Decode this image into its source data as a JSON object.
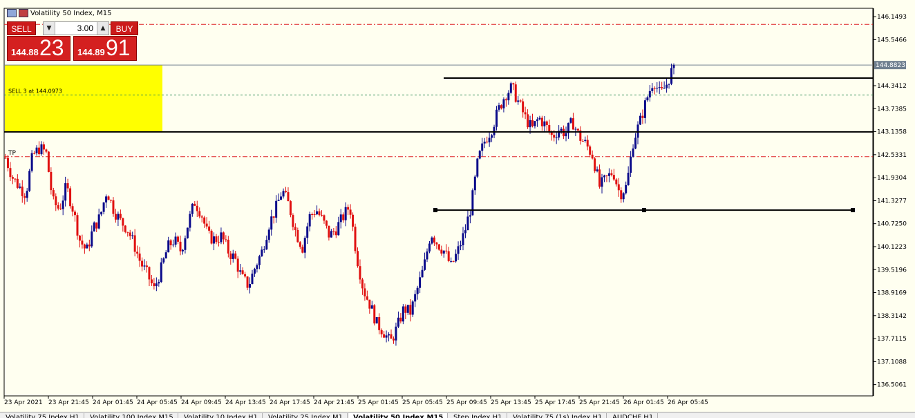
{
  "window": {
    "title": "Volatility 50 Index, M15"
  },
  "trade_panel": {
    "sell_label": "SELL",
    "buy_label": "BUY",
    "lot": "3.00",
    "sell_price_prefix": "144.88",
    "sell_price_big": "23",
    "buy_price_prefix": "144.89",
    "buy_price_big": "91"
  },
  "annotations": {
    "order_label": "SELL 3 at 144.0973",
    "tp_label": "TP",
    "current_price": "144.8823"
  },
  "colors": {
    "background": "#fffff0",
    "bull": "#0a0a8a",
    "bear": "#e01010",
    "zone": "#ffff00",
    "tp_line": "#dd2222",
    "order_line": "#2e8b57",
    "bid_line": "#708090"
  },
  "tabs": [
    {
      "label": "Volatility 75 Index,H1",
      "active": false
    },
    {
      "label": "Volatility 100 Index,M15",
      "active": false
    },
    {
      "label": "Volatility 10 Index,H1",
      "active": false
    },
    {
      "label": "Volatility 25 Index,M1",
      "active": false
    },
    {
      "label": "Volatility 50 Index,M15",
      "active": true
    },
    {
      "label": "Step Index,H1",
      "active": false
    },
    {
      "label": "Volatility 75 (1s) Index,H1",
      "active": false
    },
    {
      "label": "AUDCHF,H1",
      "active": false
    }
  ],
  "chart_data": {
    "type": "candlestick",
    "symbol": "Volatility 50 Index",
    "timeframe": "M15",
    "y_ticks": [
      "146.1493",
      "145.5466",
      "144.3412",
      "143.7385",
      "143.1358",
      "142.5331",
      "141.9304",
      "141.3277",
      "140.7250",
      "140.1223",
      "139.5196",
      "138.9169",
      "138.3142",
      "137.7115",
      "137.1088",
      "136.5061"
    ],
    "x_ticks": [
      "23 Apr 2021",
      "23 Apr 21:45",
      "24 Apr 01:45",
      "24 Apr 05:45",
      "24 Apr 09:45",
      "24 Apr 13:45",
      "24 Apr 17:45",
      "24 Apr 21:45",
      "25 Apr 01:45",
      "25 Apr 05:45",
      "25 Apr 09:45",
      "25 Apr 13:45",
      "25 Apr 17:45",
      "25 Apr 21:45",
      "26 Apr 01:45",
      "26 Apr 05:45"
    ],
    "ylim": [
      136.21,
      146.37
    ],
    "current_price": 144.8823,
    "tp_level": 142.48,
    "upper_level": 145.95,
    "order_level": 144.0973,
    "horizontal_lines": [
      144.54,
      143.13,
      141.08
    ],
    "zone": {
      "y_top": 144.88,
      "y_bottom": 143.13
    },
    "anchors": [
      142.45,
      141.95,
      141.7,
      141.5,
      142.5,
      142.7,
      142.6,
      141.3,
      141.1,
      141.7,
      141.1,
      140.3,
      140.0,
      140.6,
      140.9,
      141.6,
      141.1,
      140.8,
      140.6,
      140.2,
      139.7,
      139.4,
      139.0,
      139.5,
      140.1,
      140.3,
      140.0,
      140.7,
      141.3,
      141.0,
      140.4,
      140.3,
      140.4,
      140.0,
      139.8,
      139.3,
      139.1,
      139.6,
      140.0,
      140.7,
      141.1,
      141.6,
      141.2,
      140.5,
      140.1,
      140.9,
      141.1,
      140.8,
      140.4,
      140.6,
      140.9,
      141.2,
      139.9,
      139.0,
      138.6,
      138.1,
      137.9,
      137.6,
      138.0,
      138.5,
      138.4,
      139.0,
      139.6,
      140.5,
      140.2,
      140.0,
      139.6,
      140.0,
      140.5,
      141.2,
      142.4,
      142.9,
      143.2,
      143.7,
      144.1,
      144.3,
      143.9,
      143.5,
      143.2,
      143.5,
      143.3,
      143.0,
      143.2,
      143.1,
      143.4,
      143.0,
      142.8,
      142.5,
      141.7,
      141.9,
      142.1,
      141.5,
      141.7,
      142.9,
      143.4,
      144.0,
      144.5,
      144.1,
      144.4,
      144.88
    ]
  }
}
